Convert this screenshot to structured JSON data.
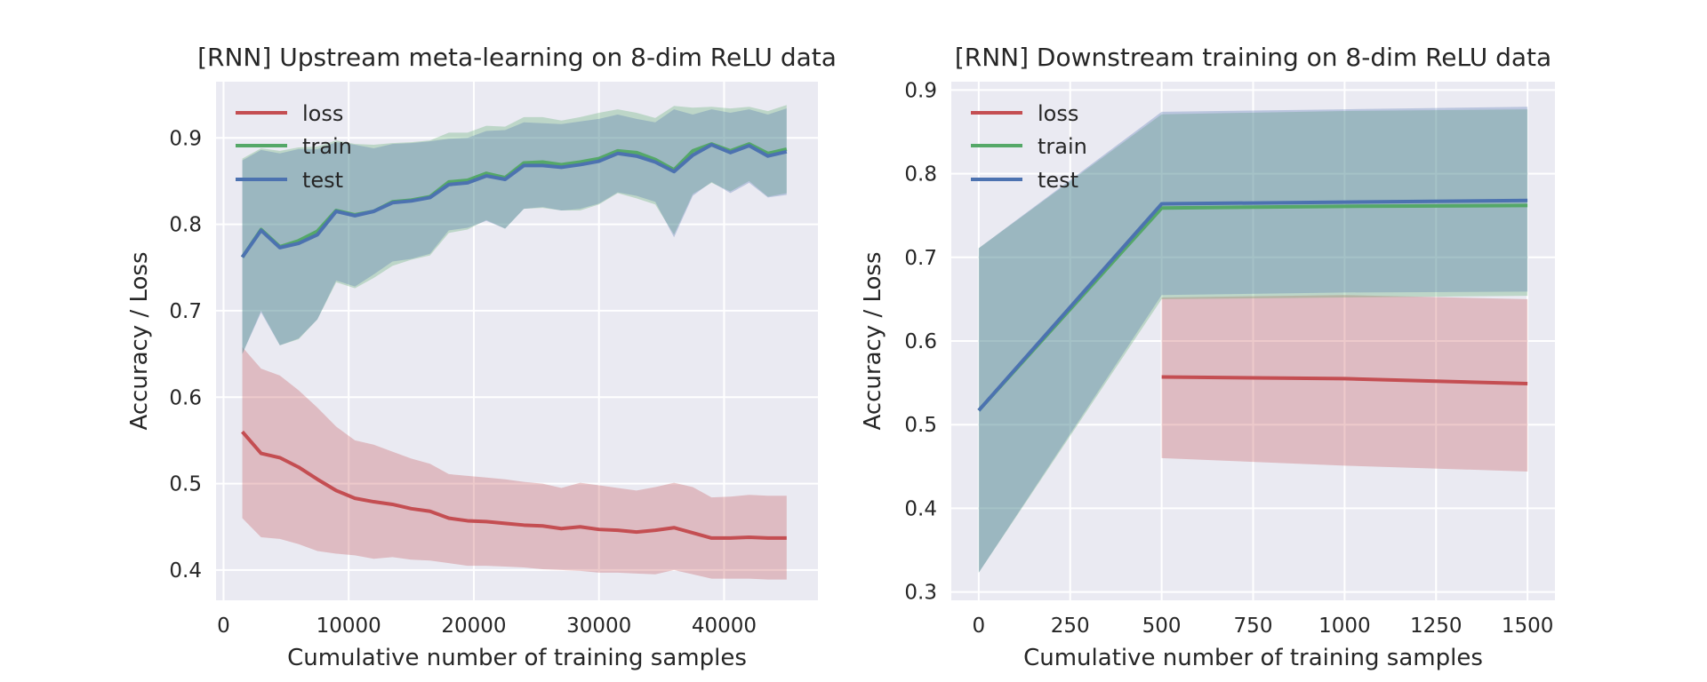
{
  "chart_data": [
    {
      "type": "line",
      "title": "[RNN] Upstream meta-learning on 8-dim ReLU data",
      "xlabel": "Cumulative number of training samples",
      "ylabel": "Accuracy / Loss",
      "xlim": [
        -600,
        47500
      ],
      "ylim": [
        0.365,
        0.965
      ],
      "xticks": [
        0,
        10000,
        20000,
        30000,
        40000
      ],
      "xtick_labels": [
        "0",
        "10000",
        "20000",
        "30000",
        "40000"
      ],
      "yticks": [
        0.4,
        0.5,
        0.6,
        0.7,
        0.8,
        0.9
      ],
      "ytick_labels": [
        "0.4",
        "0.5",
        "0.6",
        "0.7",
        "0.8",
        "0.9"
      ],
      "grid": true,
      "legend_position": "upper-left",
      "x": [
        1500,
        3000,
        4500,
        6000,
        7500,
        9000,
        10500,
        12000,
        13500,
        15000,
        16500,
        18000,
        19500,
        21000,
        22500,
        24000,
        25500,
        27000,
        28500,
        30000,
        31500,
        33000,
        34500,
        36000,
        37500,
        39000,
        40500,
        42000,
        43500,
        45000
      ],
      "series": [
        {
          "name": "loss",
          "color": "#c44e52",
          "values": [
            0.56,
            0.535,
            0.53,
            0.519,
            0.505,
            0.492,
            0.483,
            0.479,
            0.476,
            0.471,
            0.468,
            0.46,
            0.457,
            0.456,
            0.454,
            0.452,
            0.451,
            0.448,
            0.45,
            0.447,
            0.446,
            0.444,
            0.446,
            0.449,
            0.443,
            0.437,
            0.437,
            0.438,
            0.437,
            0.437
          ],
          "upper": [
            0.658,
            0.633,
            0.625,
            0.608,
            0.588,
            0.566,
            0.55,
            0.545,
            0.537,
            0.529,
            0.523,
            0.511,
            0.509,
            0.507,
            0.505,
            0.502,
            0.5,
            0.495,
            0.501,
            0.498,
            0.495,
            0.492,
            0.496,
            0.501,
            0.496,
            0.484,
            0.485,
            0.487,
            0.486,
            0.486
          ],
          "lower": [
            0.46,
            0.438,
            0.436,
            0.43,
            0.422,
            0.419,
            0.417,
            0.413,
            0.415,
            0.412,
            0.411,
            0.408,
            0.405,
            0.405,
            0.404,
            0.403,
            0.401,
            0.4,
            0.399,
            0.397,
            0.397,
            0.396,
            0.395,
            0.4,
            0.395,
            0.39,
            0.39,
            0.39,
            0.389,
            0.389
          ]
        },
        {
          "name": "train",
          "color": "#55a868",
          "values": [
            0.762,
            0.794,
            0.774,
            0.781,
            0.792,
            0.816,
            0.811,
            0.815,
            0.826,
            0.828,
            0.832,
            0.849,
            0.851,
            0.859,
            0.854,
            0.871,
            0.872,
            0.869,
            0.872,
            0.876,
            0.885,
            0.883,
            0.875,
            0.863,
            0.885,
            0.893,
            0.885,
            0.893,
            0.882,
            0.887
          ],
          "upper": [
            0.876,
            0.888,
            0.885,
            0.889,
            0.89,
            0.897,
            0.893,
            0.892,
            0.894,
            0.895,
            0.897,
            0.906,
            0.906,
            0.914,
            0.913,
            0.924,
            0.924,
            0.92,
            0.924,
            0.929,
            0.933,
            0.929,
            0.923,
            0.937,
            0.935,
            0.936,
            0.934,
            0.936,
            0.931,
            0.938
          ],
          "lower": [
            0.65,
            0.7,
            0.66,
            0.667,
            0.69,
            0.733,
            0.726,
            0.738,
            0.752,
            0.759,
            0.764,
            0.79,
            0.794,
            0.805,
            0.795,
            0.818,
            0.819,
            0.816,
            0.816,
            0.823,
            0.836,
            0.83,
            0.823,
            0.788,
            0.835,
            0.848,
            0.838,
            0.85,
            0.832,
            0.836
          ]
        },
        {
          "name": "test",
          "color": "#4c72b0",
          "values": [
            0.762,
            0.793,
            0.773,
            0.778,
            0.788,
            0.815,
            0.81,
            0.815,
            0.825,
            0.827,
            0.831,
            0.846,
            0.848,
            0.856,
            0.852,
            0.868,
            0.868,
            0.866,
            0.869,
            0.873,
            0.882,
            0.879,
            0.872,
            0.861,
            0.88,
            0.892,
            0.883,
            0.891,
            0.879,
            0.884
          ],
          "upper": [
            0.874,
            0.886,
            0.882,
            0.887,
            0.887,
            0.895,
            0.892,
            0.888,
            0.893,
            0.894,
            0.896,
            0.899,
            0.9,
            0.908,
            0.909,
            0.918,
            0.917,
            0.916,
            0.919,
            0.922,
            0.927,
            0.922,
            0.918,
            0.933,
            0.927,
            0.933,
            0.929,
            0.933,
            0.927,
            0.934
          ],
          "lower": [
            0.65,
            0.698,
            0.66,
            0.668,
            0.69,
            0.735,
            0.728,
            0.742,
            0.757,
            0.76,
            0.766,
            0.793,
            0.796,
            0.804,
            0.795,
            0.818,
            0.82,
            0.816,
            0.818,
            0.824,
            0.837,
            0.833,
            0.826,
            0.785,
            0.833,
            0.849,
            0.836,
            0.848,
            0.831,
            0.834
          ]
        }
      ]
    },
    {
      "type": "line",
      "title": "[RNN] Downstream training on 8-dim ReLU data",
      "xlabel": "Cumulative number of training samples",
      "ylabel": "Accuracy / Loss",
      "xlim": [
        -75,
        1575
      ],
      "ylim": [
        0.29,
        0.91
      ],
      "xticks": [
        0,
        250,
        500,
        750,
        1000,
        1250,
        1500
      ],
      "xtick_labels": [
        "0",
        "250",
        "500",
        "750",
        "1000",
        "1250",
        "1500"
      ],
      "yticks": [
        0.3,
        0.4,
        0.5,
        0.6,
        0.7,
        0.8,
        0.9
      ],
      "ytick_labels": [
        "0.3",
        "0.4",
        "0.5",
        "0.6",
        "0.7",
        "0.8",
        "0.9"
      ],
      "grid": true,
      "legend_position": "upper-left",
      "series": [
        {
          "name": "loss",
          "color": "#c44e52",
          "x": [
            500,
            1000,
            1500
          ],
          "values": [
            0.557,
            0.555,
            0.549
          ],
          "upper": [
            0.652,
            0.655,
            0.65
          ],
          "lower": [
            0.46,
            0.451,
            0.444
          ]
        },
        {
          "name": "train",
          "color": "#55a868",
          "x": [
            0,
            500,
            1000,
            1500
          ],
          "values": [
            0.517,
            0.759,
            0.761,
            0.762
          ],
          "upper": [
            0.711,
            0.871,
            0.875,
            0.877
          ],
          "lower": [
            0.323,
            0.65,
            0.652,
            0.654
          ]
        },
        {
          "name": "test",
          "color": "#4c72b0",
          "x": [
            0,
            500,
            1000,
            1500
          ],
          "values": [
            0.517,
            0.764,
            0.766,
            0.768
          ],
          "upper": [
            0.711,
            0.874,
            0.877,
            0.88
          ],
          "lower": [
            0.323,
            0.655,
            0.658,
            0.659
          ]
        }
      ]
    }
  ]
}
